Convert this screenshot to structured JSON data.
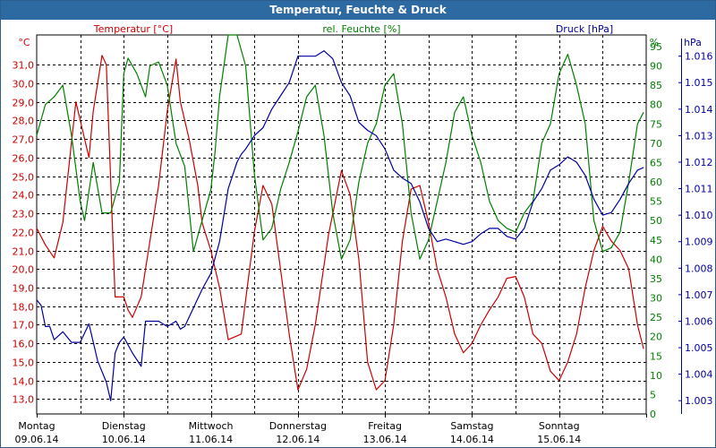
{
  "title": "Temperatur, Feuchte & Druck",
  "colors": {
    "temperature": "#cc0000",
    "humidity": "#008000",
    "pressure": "#0000a0",
    "grid": "#000000",
    "titlebar": "#2d6aa1"
  },
  "chart_data": {
    "type": "line",
    "title": "Temperatur, Feuchte & Druck",
    "grid": true,
    "x_range": [
      "2014-06-09 00:00",
      "2014-06-16 00:00"
    ],
    "days": [
      {
        "name": "Montag",
        "date": "09.06.14"
      },
      {
        "name": "Dienstag",
        "date": "10.06.14"
      },
      {
        "name": "Mittwoch",
        "date": "11.06.14"
      },
      {
        "name": "Donnerstag",
        "date": "12.06.14"
      },
      {
        "name": "Freitag",
        "date": "13.06.14"
      },
      {
        "name": "Samstag",
        "date": "14.06.14"
      },
      {
        "name": "Sonntag",
        "date": "15.06.14"
      }
    ],
    "axes": {
      "temperature": {
        "unit": "°C",
        "side": "left",
        "range": [
          12.2,
          32.6
        ],
        "ticks": [
          "13,0",
          "14,0",
          "15,0",
          "16,0",
          "17,0",
          "18,0",
          "19,0",
          "20,0",
          "21,0",
          "22,0",
          "23,0",
          "24,0",
          "25,0",
          "26,0",
          "27,0",
          "28,0",
          "29,0",
          "30,0",
          "31,0"
        ]
      },
      "humidity": {
        "unit": "%",
        "side": "right",
        "range": [
          0,
          98
        ],
        "ticks": [
          "0",
          "5",
          "10",
          "15",
          "20",
          "25",
          "30",
          "35",
          "40",
          "45",
          "50",
          "55",
          "60",
          "65",
          "70",
          "75",
          "80",
          "85",
          "90",
          "95"
        ]
      },
      "pressure": {
        "unit": "hPa",
        "side": "right",
        "range": [
          1002.5,
          1016.8
        ],
        "ticks": [
          "1.003",
          "1.004",
          "1.005",
          "1.006",
          "1.007",
          "1.008",
          "1.009",
          "1.010",
          "1.011",
          "1.012",
          "1.013",
          "1.014",
          "1.015",
          "1.016"
        ]
      }
    },
    "series": [
      {
        "name": "Temperatur [°C]",
        "axis": "temperature",
        "color": "#cc0000",
        "x_days": [
          0,
          0.1,
          0.2,
          0.3,
          0.45,
          0.6,
          0.65,
          0.75,
          0.8,
          0.9,
          1.0,
          1.05,
          1.1,
          1.2,
          1.3,
          1.4,
          1.5,
          1.6,
          1.65,
          1.75,
          1.85,
          1.9,
          2.0,
          2.1,
          2.2,
          2.35,
          2.5,
          2.6,
          2.7,
          2.8,
          2.9,
          3.0,
          3.1,
          3.2,
          3.35,
          3.5,
          3.6,
          3.7,
          3.8,
          3.9,
          4.0,
          4.1,
          4.2,
          4.3,
          4.4,
          4.5,
          4.6,
          4.7,
          4.8,
          4.9,
          5.0,
          5.1,
          5.2,
          5.3,
          5.4,
          5.5,
          5.6,
          5.7,
          5.8,
          5.9,
          6.0,
          6.1,
          6.2,
          6.3,
          6.4,
          6.5,
          6.6,
          6.7,
          6.8,
          6.9,
          6.97
        ],
        "values": [
          22.2,
          21.3,
          20.6,
          22.5,
          29.0,
          26.0,
          28.5,
          31.5,
          31.0,
          18.5,
          18.5,
          17.8,
          17.4,
          18.5,
          21.5,
          24.5,
          28.5,
          31.3,
          29.0,
          27.0,
          24.5,
          22.5,
          21.0,
          19.0,
          16.2,
          16.5,
          22.0,
          24.5,
          23.5,
          20.0,
          16.5,
          13.5,
          14.6,
          17.0,
          21.8,
          25.3,
          24.0,
          20.5,
          15.0,
          13.5,
          14.0,
          17.0,
          21.5,
          24.3,
          24.5,
          22.5,
          20.0,
          18.5,
          16.5,
          15.5,
          16.0,
          17.0,
          17.8,
          18.5,
          19.5,
          19.6,
          18.5,
          16.5,
          16.0,
          14.5,
          14.0,
          15.0,
          16.5,
          19.0,
          21.0,
          22.3,
          21.5,
          21.0,
          20.0,
          17.0,
          15.7
        ]
      },
      {
        "name": "rel. Feuchte [%]",
        "axis": "humidity",
        "color": "#008000",
        "x_days": [
          0,
          0.1,
          0.2,
          0.3,
          0.4,
          0.5,
          0.55,
          0.65,
          0.75,
          0.85,
          0.95,
          1.0,
          1.05,
          1.15,
          1.25,
          1.3,
          1.4,
          1.5,
          1.6,
          1.7,
          1.8,
          1.9,
          2.0,
          2.05,
          2.1,
          2.2,
          2.3,
          2.4,
          2.5,
          2.6,
          2.7,
          2.8,
          2.9,
          3.0,
          3.1,
          3.2,
          3.3,
          3.4,
          3.5,
          3.6,
          3.7,
          3.8,
          3.9,
          4.0,
          4.1,
          4.2,
          4.3,
          4.4,
          4.5,
          4.6,
          4.7,
          4.8,
          4.9,
          5.0,
          5.1,
          5.2,
          5.3,
          5.4,
          5.5,
          5.6,
          5.7,
          5.8,
          5.9,
          6.0,
          6.1,
          6.2,
          6.3,
          6.4,
          6.5,
          6.6,
          6.7,
          6.8,
          6.9,
          6.97
        ],
        "values": [
          72,
          80,
          82,
          85,
          72,
          55,
          50,
          65,
          52,
          52,
          60,
          88,
          92,
          88,
          82,
          90,
          91,
          85,
          70,
          64,
          42,
          50,
          58,
          68,
          82,
          98,
          98,
          90,
          62,
          45,
          48,
          58,
          65,
          73,
          82,
          85,
          72,
          52,
          40,
          45,
          60,
          70,
          75,
          85,
          88,
          75,
          52,
          40,
          45,
          55,
          65,
          78,
          82,
          72,
          65,
          55,
          50,
          48,
          47,
          52,
          55,
          70,
          75,
          88,
          93,
          85,
          75,
          50,
          42,
          43,
          47,
          60,
          75,
          78
        ]
      },
      {
        "name": "Druck [hPa]",
        "axis": "pressure",
        "color": "#0000a0",
        "x_days": [
          0,
          0.05,
          0.1,
          0.15,
          0.2,
          0.3,
          0.4,
          0.5,
          0.6,
          0.7,
          0.8,
          0.85,
          0.9,
          0.95,
          1.0,
          1.1,
          1.2,
          1.25,
          1.3,
          1.4,
          1.5,
          1.6,
          1.65,
          1.7,
          1.8,
          1.9,
          2.0,
          2.1,
          2.2,
          2.3,
          2.35,
          2.4,
          2.5,
          2.6,
          2.7,
          2.8,
          2.9,
          3.0,
          3.1,
          3.2,
          3.3,
          3.4,
          3.5,
          3.6,
          3.7,
          3.8,
          3.9,
          4.0,
          4.1,
          4.2,
          4.3,
          4.4,
          4.5,
          4.6,
          4.7,
          4.8,
          4.9,
          5.0,
          5.1,
          5.2,
          5.3,
          5.4,
          5.5,
          5.6,
          5.7,
          5.8,
          5.9,
          6.0,
          6.1,
          6.2,
          6.3,
          6.4,
          6.5,
          6.6,
          6.7,
          6.8,
          6.9,
          6.97
        ],
        "values": [
          1006.8,
          1006.6,
          1005.8,
          1005.8,
          1005.3,
          1005.6,
          1005.2,
          1005.2,
          1005.9,
          1004.5,
          1003.7,
          1003.0,
          1004.8,
          1005.2,
          1005.4,
          1004.8,
          1004.3,
          1006.0,
          1006.0,
          1006.0,
          1005.8,
          1006.0,
          1005.7,
          1005.8,
          1006.5,
          1007.2,
          1007.8,
          1009.0,
          1011.0,
          1012.0,
          1012.3,
          1012.5,
          1013.0,
          1013.3,
          1014.0,
          1014.5,
          1015.0,
          1016.0,
          1016.0,
          1016.0,
          1016.2,
          1015.9,
          1015.0,
          1014.5,
          1013.5,
          1013.2,
          1013.0,
          1012.5,
          1011.7,
          1011.4,
          1011.2,
          1010.5,
          1009.5,
          1009.0,
          1009.1,
          1009.0,
          1008.9,
          1009.0,
          1009.3,
          1009.5,
          1009.5,
          1009.2,
          1009.1,
          1009.5,
          1010.5,
          1011.0,
          1011.7,
          1011.9,
          1012.2,
          1012.0,
          1011.5,
          1010.6,
          1010.0,
          1010.1,
          1010.6,
          1011.2,
          1011.7,
          1011.8
        ]
      }
    ]
  }
}
